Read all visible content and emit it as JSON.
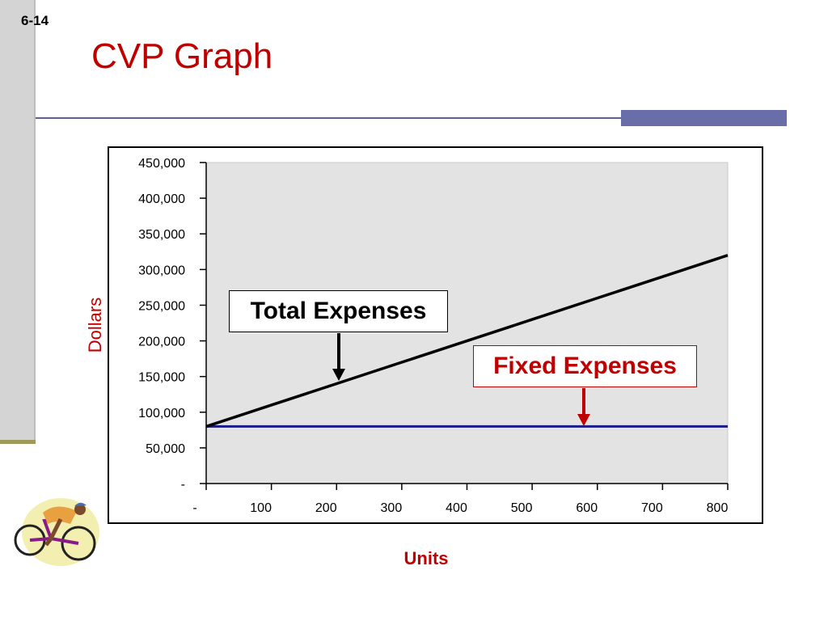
{
  "slide": {
    "number": "6-14",
    "title": "CVP Graph"
  },
  "colors": {
    "title": "#c00000",
    "total_expenses_line": "#000000",
    "fixed_expenses_line": "#1a1a8c",
    "plot_background": "#e3e3e3",
    "accent_bar": "#6a6ea8"
  },
  "callouts": {
    "total_expenses": "Total Expenses",
    "fixed_expenses": "Fixed Expenses"
  },
  "chart_data": {
    "type": "line",
    "title": "",
    "xlabel": "Units",
    "ylabel": "Dollars",
    "x": [
      0,
      100,
      200,
      300,
      400,
      500,
      600,
      700,
      800
    ],
    "x_tick_labels": [
      "-",
      "100",
      "200",
      "300",
      "400",
      "500",
      "600",
      "700",
      "800"
    ],
    "y_tick_values": [
      0,
      50000,
      100000,
      150000,
      200000,
      250000,
      300000,
      350000,
      400000,
      450000
    ],
    "y_tick_labels": [
      "-",
      "50,000",
      "100,000",
      "150,000",
      "200,000",
      "250,000",
      "300,000",
      "350,000",
      "400,000",
      "450,000"
    ],
    "xlim": [
      0,
      800
    ],
    "ylim": [
      0,
      450000
    ],
    "grid": false,
    "series": [
      {
        "name": "Total Expenses",
        "color": "#000000",
        "values": [
          80000,
          110000,
          140000,
          170000,
          200000,
          230000,
          260000,
          290000,
          320000
        ]
      },
      {
        "name": "Fixed Expenses",
        "color": "#1a1a8c",
        "values": [
          80000,
          80000,
          80000,
          80000,
          80000,
          80000,
          80000,
          80000,
          80000
        ]
      }
    ]
  },
  "decoration": {
    "clipart": "cyclist-icon"
  }
}
